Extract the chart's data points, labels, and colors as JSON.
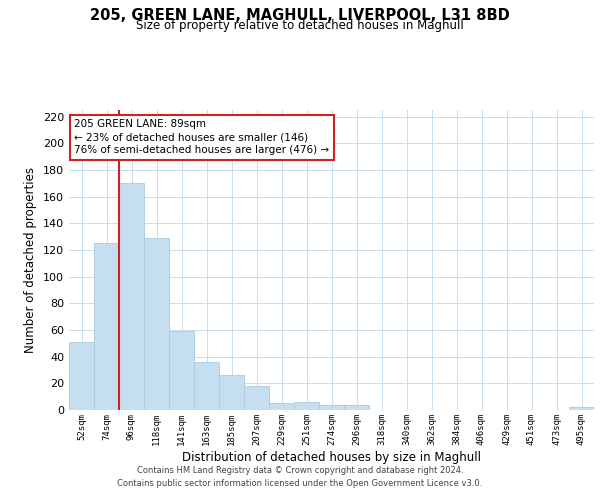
{
  "title": "205, GREEN LANE, MAGHULL, LIVERPOOL, L31 8BD",
  "subtitle": "Size of property relative to detached houses in Maghull",
  "xlabel": "Distribution of detached houses by size in Maghull",
  "ylabel": "Number of detached properties",
  "bin_labels": [
    "52sqm",
    "74sqm",
    "96sqm",
    "118sqm",
    "141sqm",
    "163sqm",
    "185sqm",
    "207sqm",
    "229sqm",
    "251sqm",
    "274sqm",
    "296sqm",
    "318sqm",
    "340sqm",
    "362sqm",
    "384sqm",
    "406sqm",
    "429sqm",
    "451sqm",
    "473sqm",
    "495sqm"
  ],
  "bar_heights": [
    51,
    125,
    170,
    129,
    59,
    36,
    26,
    18,
    5,
    6,
    4,
    4,
    0,
    0,
    0,
    0,
    0,
    0,
    0,
    0,
    2
  ],
  "bar_color": "#c5dff0",
  "bar_edge_color": "#a8cce0",
  "highlight_line_color": "#cc2222",
  "annotation_line1": "205 GREEN LANE: 89sqm",
  "annotation_line2": "← 23% of detached houses are smaller (146)",
  "annotation_line3": "76% of semi-detached houses are larger (476) →",
  "annotation_box_color": "#ffffff",
  "annotation_box_edge": "#cc2222",
  "ylim": [
    0,
    225
  ],
  "yticks": [
    0,
    20,
    40,
    60,
    80,
    100,
    120,
    140,
    160,
    180,
    200,
    220
  ],
  "footer_line1": "Contains HM Land Registry data © Crown copyright and database right 2024.",
  "footer_line2": "Contains public sector information licensed under the Open Government Licence v3.0.",
  "background_color": "#ffffff",
  "grid_color": "#c8dff0"
}
